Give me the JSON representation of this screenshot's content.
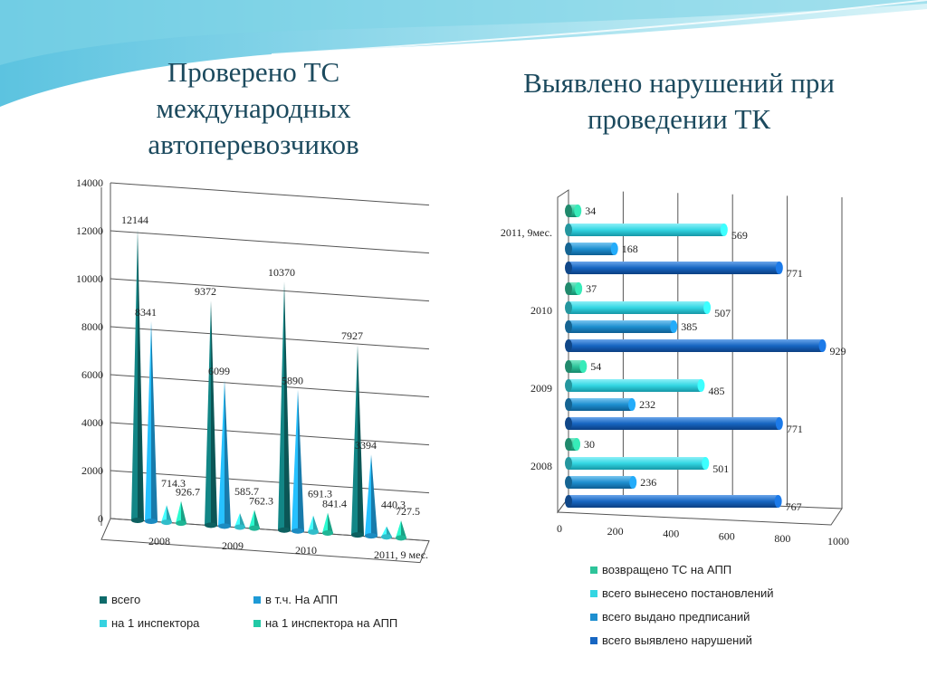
{
  "colors": {
    "wave": "#7fd3e6",
    "title": "#1c4a5e",
    "teal": "#0e6b6b",
    "blue": "#1e9ad6",
    "cyan": "#36d2e0",
    "green": "#22c9a6",
    "bar_green": "#2ec49a",
    "bar_cyan": "#33d6e2",
    "bar_blue": "#1e8fd0",
    "bar_dark": "#1766c2"
  },
  "left": {
    "title": "Проверено ТС международных автоперевозчиков"
  },
  "right": {
    "title": "Выявлено нарушений при проведении ТК"
  },
  "chart_data": [
    {
      "type": "bar",
      "style": "3d-cones",
      "title": "Проверено ТС международных автоперевозчиков",
      "categories": [
        "2008",
        "2009",
        "2010",
        "2011, 9 мес."
      ],
      "series": [
        {
          "name": "всего",
          "values": [
            12144,
            9372,
            10370,
            7927
          ],
          "labels": [
            "12144",
            "9372",
            "10370",
            "7927"
          ],
          "color": "#0e6b6b"
        },
        {
          "name": "в т.ч. На АПП",
          "values": [
            8341,
            6099,
            5890,
            3394
          ],
          "labels": [
            "8341",
            "6099",
            "5890",
            "3394"
          ],
          "color": "#1e9ad6"
        },
        {
          "name": "на 1 инспектора",
          "values": [
            714.3,
            585.7,
            691.3,
            440.3
          ],
          "labels": [
            "714.3",
            "585.7",
            "691.3",
            "440.3"
          ],
          "color": "#36d2e0"
        },
        {
          "name": "на 1 инспектора на АПП",
          "values": [
            926.7,
            762.3,
            841.4,
            727.5
          ],
          "labels": [
            "926.7",
            "762.3",
            "841.4",
            "727.5"
          ],
          "color": "#22c9a6"
        }
      ],
      "yticks": [
        "0",
        "2000",
        "4000",
        "6000",
        "8000",
        "10000",
        "12000",
        "14000"
      ],
      "ylim": [
        0,
        14000
      ],
      "grid": true,
      "legend": "bottom"
    },
    {
      "type": "bar",
      "orientation": "horizontal",
      "style": "3d-cylinders",
      "title": "Выявлено нарушений при проведении ТК",
      "categories": [
        "2011, 9мес.",
        "2010",
        "2009",
        "2008"
      ],
      "series": [
        {
          "name": "возвращено ТС на АПП",
          "values": [
            34,
            37,
            54,
            30
          ],
          "labels": [
            "34",
            "37",
            "54",
            "30"
          ],
          "color": "#2ec49a"
        },
        {
          "name": "всего вынесено постановлений",
          "values": [
            569,
            507,
            485,
            501
          ],
          "labels": [
            "569",
            "507",
            "485",
            "501"
          ],
          "color": "#33d6e2"
        },
        {
          "name": "всего выдано предписаний",
          "values": [
            168,
            385,
            232,
            236
          ],
          "labels": [
            "168",
            "385",
            "232",
            "236"
          ],
          "color": "#1e8fd0"
        },
        {
          "name": "всего выявлено нарушений",
          "values": [
            771,
            929,
            771,
            767
          ],
          "labels": [
            "771",
            "929",
            "771",
            "767"
          ],
          "color": "#1766c2"
        }
      ],
      "xticks": [
        "0",
        "200",
        "400",
        "600",
        "800",
        "1000"
      ],
      "xlim": [
        0,
        1000
      ],
      "grid": true,
      "legend": "bottom"
    }
  ]
}
